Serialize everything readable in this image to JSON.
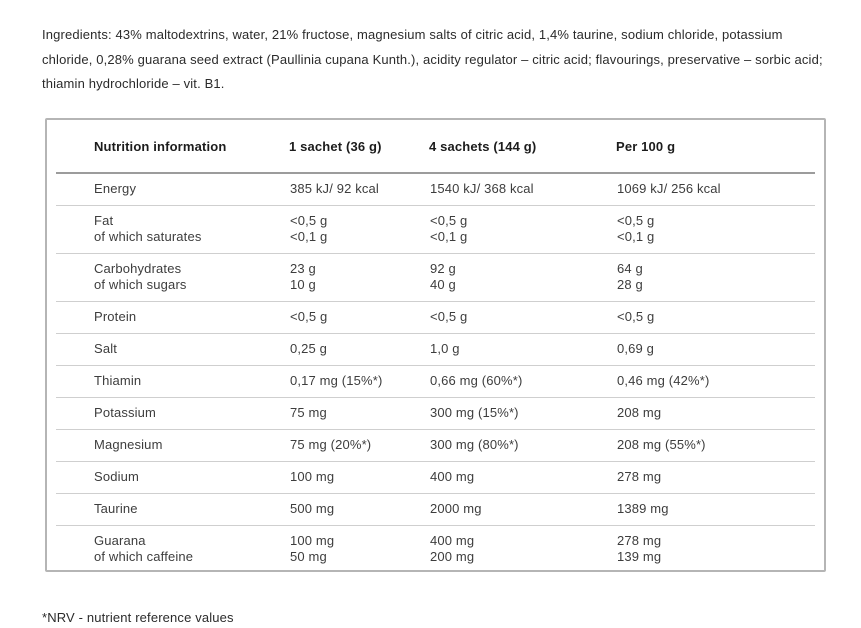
{
  "ingredients_text": "Ingredients: 43% maltodextrins, water, 21% fructose, magnesium salts of citric acid, 1,4% taurine, sodium chloride, potassium chloride, 0,28% guarana seed extract (Paullinia cupana Kunth.), acidity regulator – citric acid; flavourings, preservative – sorbic acid; thiamin hydrochloride – vit. B1.",
  "table": {
    "headers": [
      "Nutrition information",
      "1 sachet (36 g)",
      "4 sachets (144 g)",
      "Per 100 g"
    ],
    "rows": [
      {
        "cells": [
          [
            "Energy"
          ],
          [
            "385 kJ/ 92 kcal"
          ],
          [
            "1540 kJ/ 368 kcal"
          ],
          [
            "1069 kJ/ 256 kcal"
          ]
        ]
      },
      {
        "cells": [
          [
            "Fat",
            "of which saturates"
          ],
          [
            "<0,5 g",
            "<0,1 g"
          ],
          [
            "<0,5 g",
            "<0,1 g"
          ],
          [
            "<0,5 g",
            "<0,1 g"
          ]
        ]
      },
      {
        "cells": [
          [
            "Carbohydrates",
            "of which sugars"
          ],
          [
            "23 g",
            "10 g"
          ],
          [
            "92 g",
            "40 g"
          ],
          [
            "64 g",
            "28 g"
          ]
        ]
      },
      {
        "cells": [
          [
            "Protein"
          ],
          [
            "<0,5 g"
          ],
          [
            "<0,5 g"
          ],
          [
            "<0,5 g"
          ]
        ]
      },
      {
        "cells": [
          [
            "Salt"
          ],
          [
            "0,25 g"
          ],
          [
            "1,0 g"
          ],
          [
            "0,69 g"
          ]
        ]
      },
      {
        "cells": [
          [
            "Thiamin"
          ],
          [
            "0,17 mg (15%*)"
          ],
          [
            "0,66 mg (60%*)"
          ],
          [
            "0,46 mg (42%*)"
          ]
        ]
      },
      {
        "cells": [
          [
            "Potassium"
          ],
          [
            "75 mg"
          ],
          [
            "300 mg (15%*)"
          ],
          [
            "208 mg"
          ]
        ]
      },
      {
        "cells": [
          [
            "Magnesium"
          ],
          [
            "75 mg (20%*)"
          ],
          [
            "300 mg (80%*)"
          ],
          [
            "208 mg (55%*)"
          ]
        ]
      },
      {
        "cells": [
          [
            "Sodium"
          ],
          [
            "100 mg"
          ],
          [
            "400 mg"
          ],
          [
            "278 mg"
          ]
        ]
      },
      {
        "cells": [
          [
            "Taurine"
          ],
          [
            "500 mg"
          ],
          [
            "2000 mg"
          ],
          [
            "1389 mg"
          ]
        ]
      },
      {
        "cells": [
          [
            "Guarana",
            "of which caffeine"
          ],
          [
            "100 mg",
            "50 mg"
          ],
          [
            "400 mg",
            "200 mg"
          ],
          [
            "278 mg",
            "139 mg"
          ]
        ]
      }
    ]
  },
  "footnote": "*NRV - nutrient reference values",
  "colors": {
    "text": "#2b2b2b",
    "table_text": "#3d3d3d",
    "header_text": "#1c1c1c",
    "box_border": "#b5b5b5",
    "header_separator": "#9c9c9c",
    "row_separator": "#cfcfcf",
    "background": "#ffffff"
  }
}
